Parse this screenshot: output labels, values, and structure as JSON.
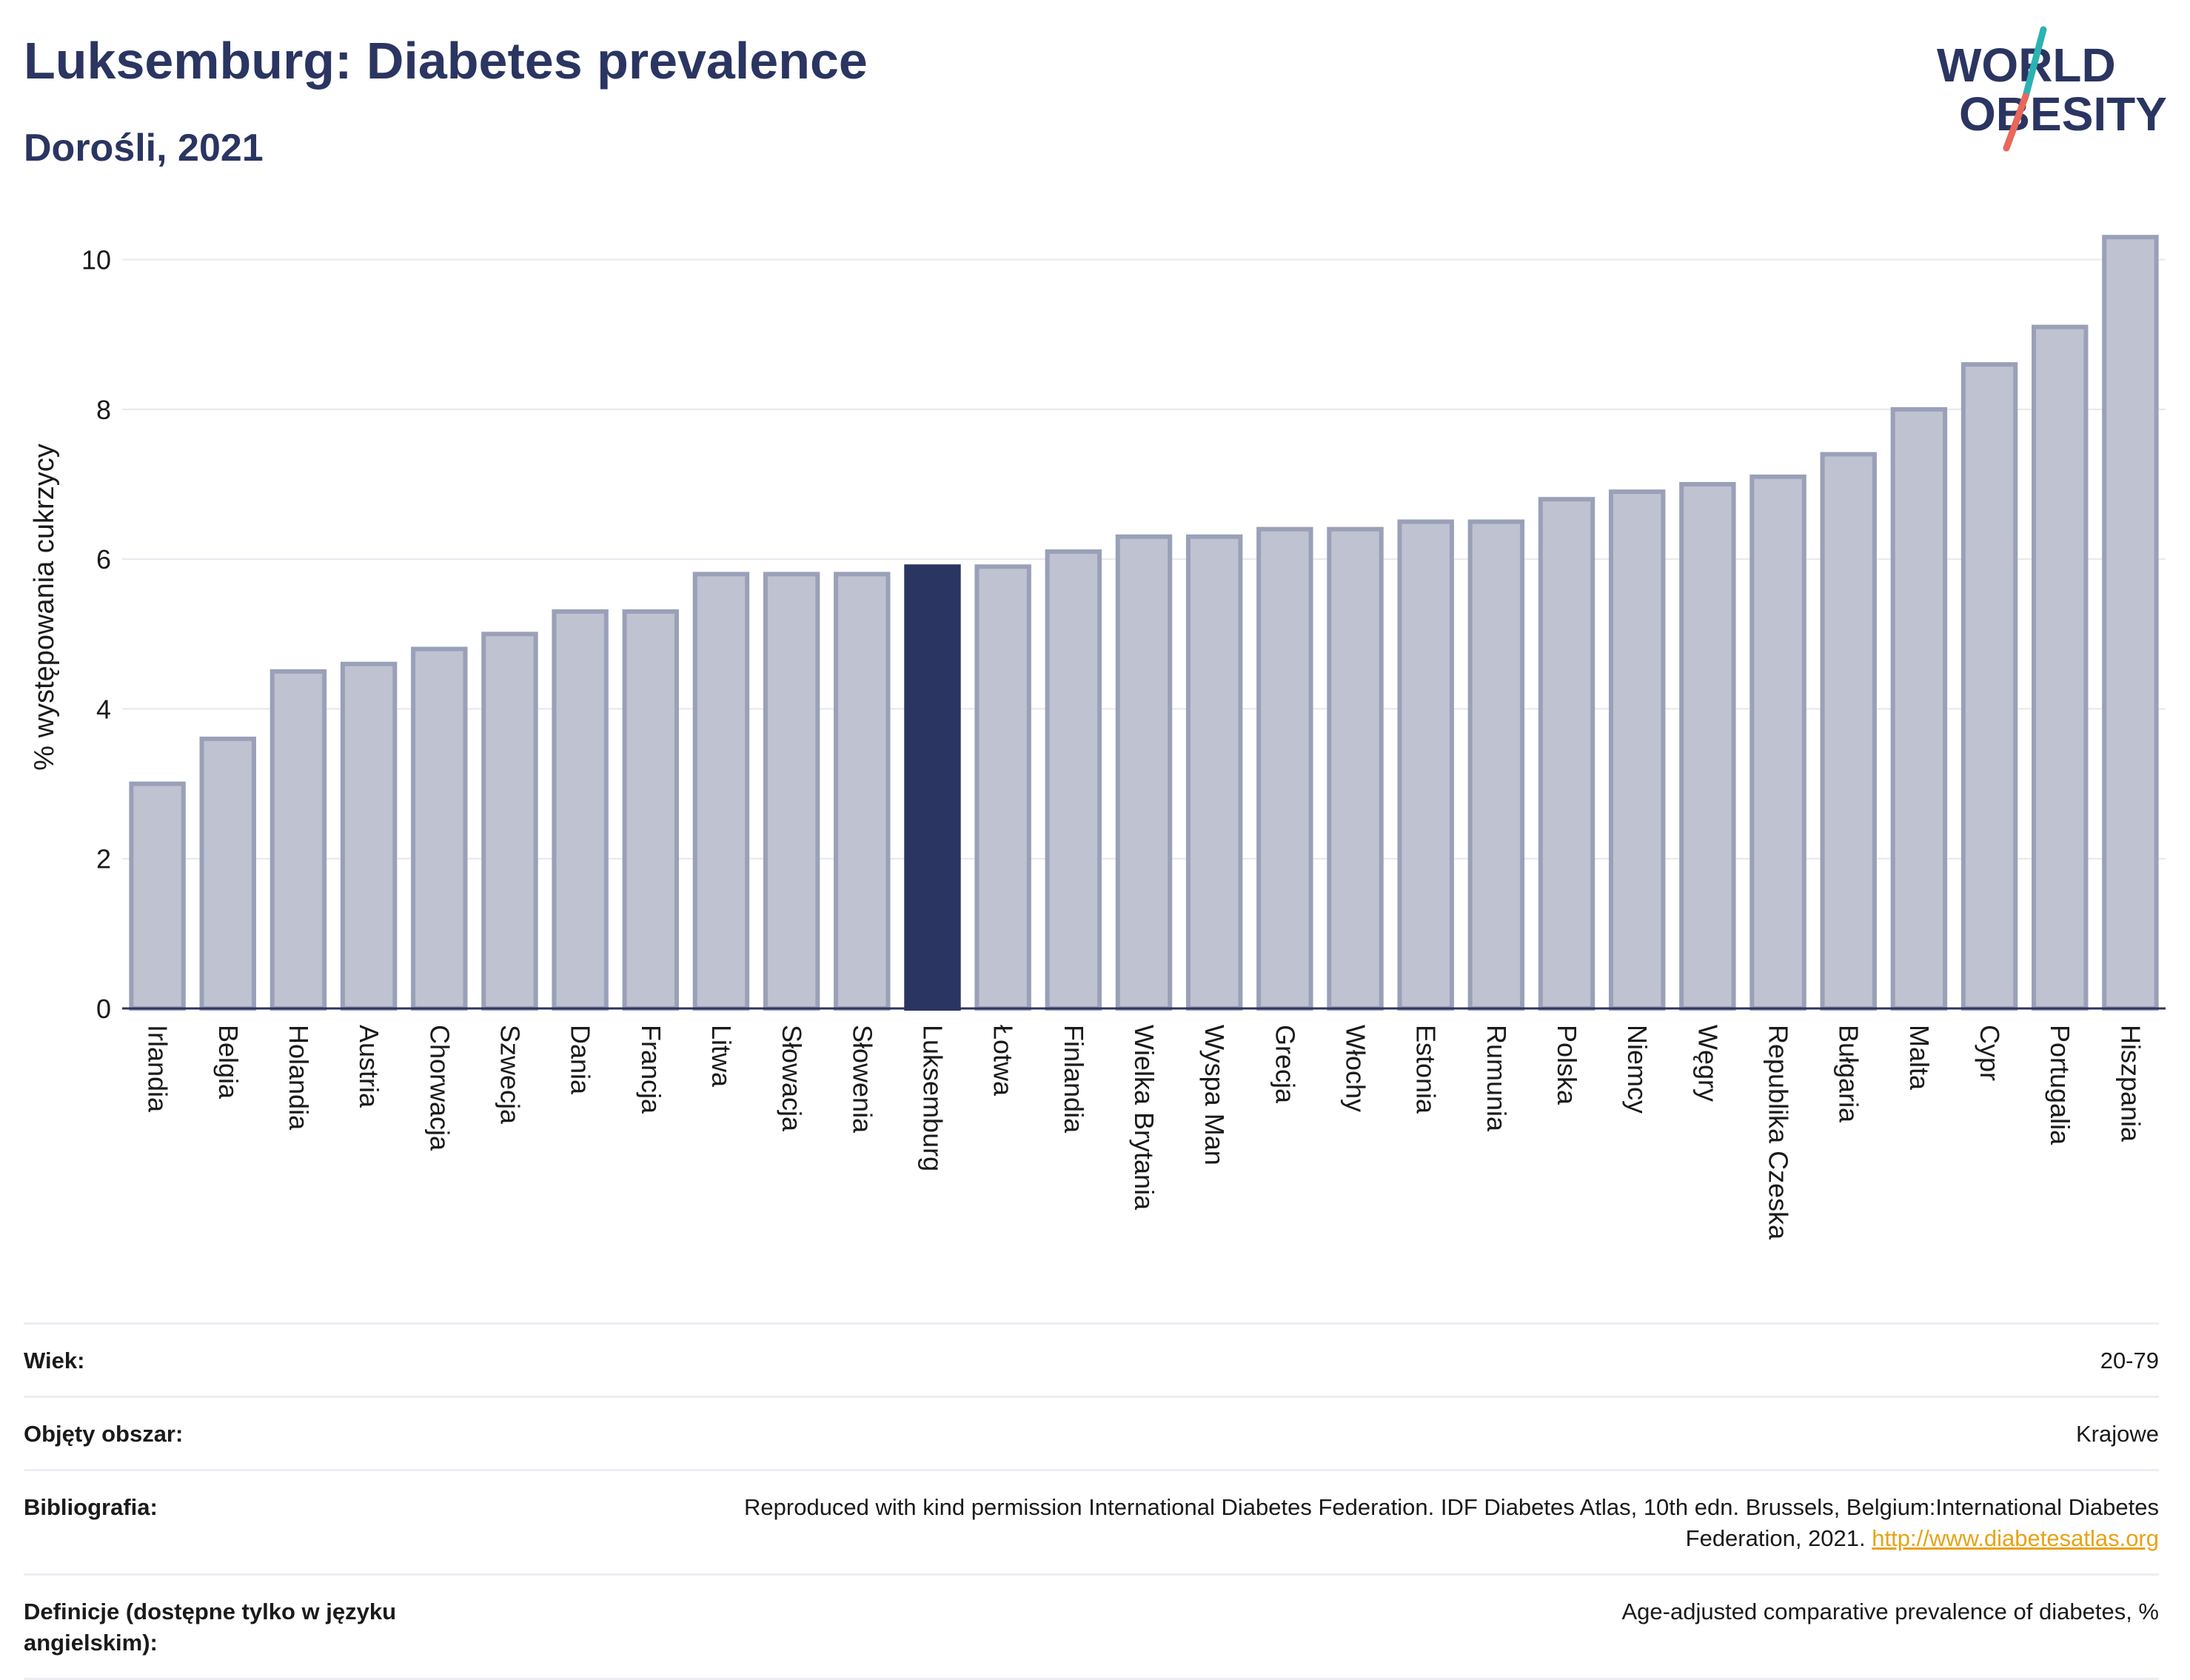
{
  "header": {
    "title": "Luksemburg: Diabetes prevalence",
    "subtitle": "Dorośli, 2021"
  },
  "logo": {
    "line1": "WORLD",
    "line2": "OBESITY"
  },
  "colors": {
    "bar_default": "#bfc2d0",
    "bar_border": "#9aa0b8",
    "bar_highlight": "#2a3561",
    "text": "#2a3561",
    "link": "#e8a215",
    "logo_teal": "#2bb3b1",
    "logo_coral": "#e8685a"
  },
  "chart_data": {
    "type": "bar",
    "title": "",
    "xlabel": "",
    "ylabel": "% występowania cukrzycy",
    "ylim": [
      0,
      10.5
    ],
    "yticks": [
      0,
      2,
      4,
      6,
      8,
      10
    ],
    "grid": true,
    "highlight": "Luksemburg",
    "categories": [
      "Irlandia",
      "Belgia",
      "Holandia",
      "Austria",
      "Chorwacja",
      "Szwecja",
      "Dania",
      "Francja",
      "Litwa",
      "Słowacja",
      "Słowenia",
      "Luksemburg",
      "Łotwa",
      "Finlandia",
      "Wielka Brytania",
      "Wyspa Man",
      "Grecja",
      "Włochy",
      "Estonia",
      "Rumunia",
      "Polska",
      "Niemcy",
      "Węgry",
      "Republika Czeska",
      "Bułgaria",
      "Malta",
      "Cypr",
      "Portugalia",
      "Hiszpania"
    ],
    "values": [
      3.0,
      3.6,
      4.5,
      4.6,
      4.8,
      5.0,
      5.3,
      5.3,
      5.8,
      5.8,
      5.8,
      5.9,
      5.9,
      6.1,
      6.3,
      6.3,
      6.4,
      6.4,
      6.5,
      6.5,
      6.8,
      6.9,
      7.0,
      7.1,
      7.4,
      8.0,
      8.6,
      9.1,
      10.3
    ]
  },
  "meta": {
    "rows": [
      {
        "label": "Wiek:",
        "value": "20-79"
      },
      {
        "label": "Objęty obszar:",
        "value": "Krajowe"
      },
      {
        "label": "Bibliografia:",
        "value": "Reproduced with kind permission International Diabetes Federation.  IDF Diabetes Atlas, 10th edn. Brussels, Belgium:International Diabetes Federation, 2021.",
        "link": "http://www.diabetesatlas.org"
      },
      {
        "label": "Definicje (dostępne tylko w języku angielskim):",
        "value": "Age-adjusted comparative prevalence of diabetes, %"
      }
    ]
  }
}
